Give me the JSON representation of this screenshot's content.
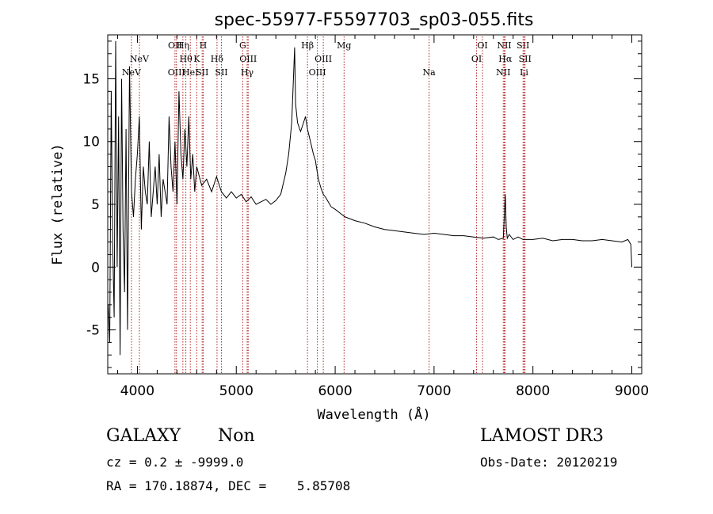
{
  "chart_data": {
    "type": "line",
    "title": "spec-55977-F5597703_sp03-055.fits",
    "xlabel": "Wavelength (Å)",
    "ylabel": "Flux (relative)",
    "xlim": [
      3700,
      9100
    ],
    "ylim": [
      -8.5,
      18.5
    ],
    "xticks": [
      4000,
      5000,
      6000,
      7000,
      8000,
      9000
    ],
    "yticks": [
      -5,
      0,
      5,
      10,
      15
    ],
    "series": [
      {
        "name": "spectrum",
        "x": [
          3705,
          3720,
          3735,
          3750,
          3765,
          3780,
          3795,
          3810,
          3825,
          3840,
          3855,
          3870,
          3885,
          3900,
          3920,
          3940,
          3960,
          3980,
          4000,
          4020,
          4040,
          4060,
          4080,
          4100,
          4120,
          4140,
          4160,
          4180,
          4200,
          4220,
          4240,
          4260,
          4280,
          4300,
          4320,
          4340,
          4360,
          4380,
          4400,
          4420,
          4440,
          4460,
          4480,
          4500,
          4520,
          4540,
          4560,
          4580,
          4600,
          4650,
          4700,
          4750,
          4800,
          4850,
          4900,
          4950,
          5000,
          5050,
          5100,
          5150,
          5200,
          5250,
          5300,
          5350,
          5400,
          5450,
          5500,
          5530,
          5560,
          5580,
          5590,
          5600,
          5620,
          5650,
          5680,
          5700,
          5720,
          5750,
          5780,
          5800,
          5830,
          5860,
          5880,
          5900,
          5930,
          5960,
          6000,
          6050,
          6100,
          6200,
          6300,
          6400,
          6500,
          6600,
          6700,
          6800,
          6900,
          7000,
          7100,
          7200,
          7300,
          7400,
          7500,
          7600,
          7650,
          7700,
          7720,
          7730,
          7740,
          7760,
          7800,
          7850,
          7900,
          8000,
          8100,
          8200,
          8300,
          8400,
          8500,
          8600,
          8700,
          8800,
          8900,
          8960,
          8990,
          9000
        ],
        "values": [
          -3,
          -6,
          14,
          2,
          -4,
          18,
          0,
          12,
          -7,
          15,
          3,
          -2,
          11,
          -5,
          16,
          6,
          4,
          7,
          9,
          12,
          3,
          8,
          6,
          5,
          10,
          4,
          6,
          8,
          5,
          9,
          4,
          7,
          6,
          5,
          12,
          8,
          6,
          10,
          5,
          14,
          9,
          7,
          11,
          8,
          12,
          7,
          9,
          6,
          8,
          6.5,
          7,
          6,
          7.2,
          6,
          5.5,
          6,
          5.5,
          5.8,
          5.2,
          5.6,
          5,
          5.2,
          5.4,
          5,
          5.3,
          5.8,
          7.5,
          9,
          11.5,
          15.5,
          17.5,
          13,
          11.5,
          10.8,
          11.5,
          12,
          11,
          10,
          9,
          8.5,
          7,
          6.2,
          5.8,
          5.6,
          5.2,
          4.8,
          4.6,
          4.3,
          4.0,
          3.7,
          3.5,
          3.2,
          3.0,
          2.9,
          2.8,
          2.7,
          2.6,
          2.7,
          2.6,
          2.5,
          2.5,
          2.4,
          2.3,
          2.4,
          2.2,
          2.3,
          5.8,
          3.2,
          2.3,
          2.6,
          2.2,
          2.4,
          2.2,
          2.2,
          2.3,
          2.1,
          2.2,
          2.2,
          2.1,
          2.1,
          2.2,
          2.1,
          2.0,
          2.2,
          1.8,
          0
        ]
      }
    ],
    "line_markers": [
      {
        "name": "NeV",
        "x": 3346,
        "row": 2
      },
      {
        "name": "NeV",
        "x": 3426,
        "row": 1
      },
      {
        "name": "NeV",
        "x": 3940,
        "row": 2
      },
      {
        "name": "NeV",
        "x": 4020,
        "row": 1
      },
      {
        "name": "OII",
        "x": 4380,
        "row": 0
      },
      {
        "name": "OIII",
        "x": 4395,
        "row": 2
      },
      {
        "name": "Hη",
        "x": 4460,
        "row": 0
      },
      {
        "name": "Hθ",
        "x": 4490,
        "row": 1
      },
      {
        "name": "HeI",
        "x": 4535,
        "row": 2
      },
      {
        "name": "K",
        "x": 4600,
        "row": 1
      },
      {
        "name": "H",
        "x": 4665,
        "row": 0
      },
      {
        "name": "SII",
        "x": 4655,
        "row": 2
      },
      {
        "name": "Hδ",
        "x": 4805,
        "row": 1
      },
      {
        "name": "SII",
        "x": 4850,
        "row": 2
      },
      {
        "name": "G",
        "x": 5065,
        "row": 0
      },
      {
        "name": "OIII",
        "x": 5120,
        "row": 1
      },
      {
        "name": "Hγ",
        "x": 5110,
        "row": 2
      },
      {
        "name": "Hβ",
        "x": 5720,
        "row": 0
      },
      {
        "name": "OIII",
        "x": 5880,
        "row": 1
      },
      {
        "name": "OIII",
        "x": 5820,
        "row": 2
      },
      {
        "name": "Mg",
        "x": 6090,
        "row": 0
      },
      {
        "name": "Na",
        "x": 6950,
        "row": 2
      },
      {
        "name": "OI",
        "x": 7490,
        "row": 0
      },
      {
        "name": "OI",
        "x": 7430,
        "row": 1
      },
      {
        "name": "NII",
        "x": 7710,
        "row": 0
      },
      {
        "name": "Hα",
        "x": 7720,
        "row": 1
      },
      {
        "name": "NII",
        "x": 7700,
        "row": 2
      },
      {
        "name": "SII",
        "x": 7900,
        "row": 0
      },
      {
        "name": "SII",
        "x": 7920,
        "row": 1
      },
      {
        "name": "Li",
        "x": 7910,
        "row": 2
      }
    ]
  },
  "info": {
    "object_class": "GALAXY",
    "subclass": "Non",
    "survey": "LAMOST DR3",
    "cz_line": "cz = 0.2 ± -9999.0",
    "obs_date_line": "Obs-Date: 20120219",
    "coords_line": "RA = 170.18874, DEC =    5.85708"
  }
}
